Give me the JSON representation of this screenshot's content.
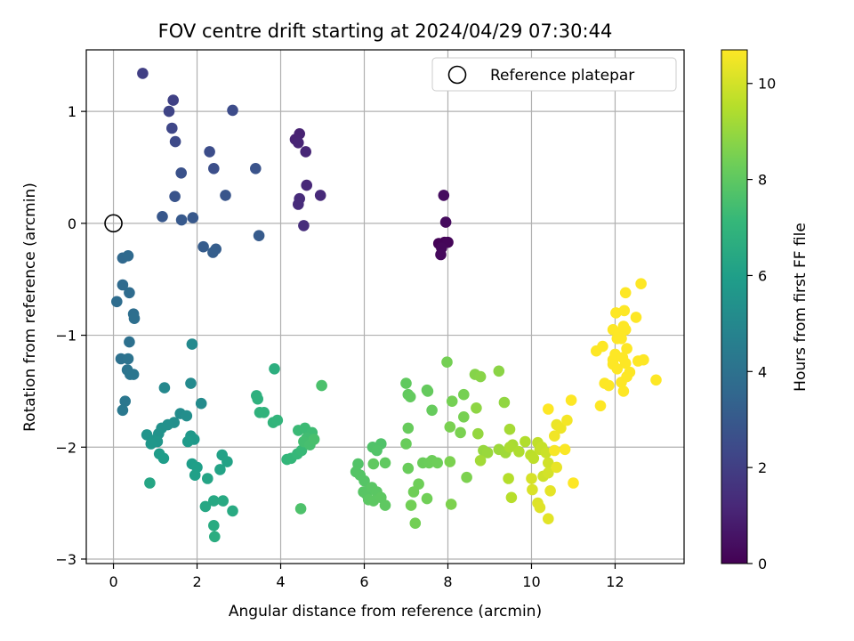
{
  "chart_data": {
    "type": "scatter",
    "title": "FOV centre drift starting at 2024/04/29 07:30:44",
    "xlabel": "Angular distance from reference (arcmin)",
    "ylabel": "Rotation from reference (arcmin)",
    "xlim": [
      -0.65,
      13.65
    ],
    "ylim": [
      -3.04,
      1.55
    ],
    "xticks": [
      0,
      2,
      4,
      6,
      8,
      10,
      12
    ],
    "yticks": [
      -3,
      -2,
      -1,
      0,
      1
    ],
    "grid": true,
    "legend": {
      "position": "top-right",
      "entries": [
        "Reference platepar"
      ]
    },
    "reference_point": {
      "x": 0,
      "y": 0
    },
    "colorbar": {
      "label": "Hours from first FF file",
      "min": 0,
      "max": 10.7,
      "ticks": [
        0,
        2,
        4,
        6,
        8,
        10
      ],
      "colormap": [
        "#440154",
        "#482878",
        "#3e4989",
        "#31688e",
        "#26828e",
        "#1f9e89",
        "#35b779",
        "#6ece58",
        "#b5de2b",
        "#fde725"
      ]
    },
    "points": [
      [
        7.78,
        -0.18,
        0.05
      ],
      [
        7.92,
        -0.17,
        0.1
      ],
      [
        8.0,
        -0.17,
        0.15
      ],
      [
        7.85,
        -0.22,
        0.2
      ],
      [
        7.83,
        -0.28,
        0.25
      ],
      [
        7.95,
        0.01,
        0.3
      ],
      [
        7.9,
        0.25,
        0.35
      ],
      [
        4.45,
        0.8,
        1.0
      ],
      [
        4.35,
        0.75,
        1.05
      ],
      [
        4.42,
        0.72,
        1.1
      ],
      [
        4.6,
        0.64,
        1.15
      ],
      [
        4.62,
        0.34,
        1.2
      ],
      [
        4.95,
        0.25,
        1.25
      ],
      [
        4.45,
        0.22,
        1.3
      ],
      [
        4.42,
        0.17,
        1.35
      ],
      [
        4.55,
        -0.02,
        1.4
      ],
      [
        0.7,
        1.34,
        2.0
      ],
      [
        1.43,
        1.1,
        2.1
      ],
      [
        1.33,
        1.0,
        2.2
      ],
      [
        1.4,
        0.85,
        2.3
      ],
      [
        1.48,
        0.73,
        2.4
      ],
      [
        2.85,
        1.01,
        2.5
      ],
      [
        2.3,
        0.64,
        2.55
      ],
      [
        2.4,
        0.49,
        2.6
      ],
      [
        1.62,
        0.45,
        2.7
      ],
      [
        3.4,
        0.49,
        2.75
      ],
      [
        1.47,
        0.24,
        2.8
      ],
      [
        2.68,
        0.25,
        2.85
      ],
      [
        1.17,
        0.06,
        2.9
      ],
      [
        1.9,
        0.05,
        2.95
      ],
      [
        1.63,
        0.03,
        3.0
      ],
      [
        3.48,
        -0.11,
        3.05
      ],
      [
        2.15,
        -0.21,
        3.1
      ],
      [
        2.45,
        -0.23,
        3.15
      ],
      [
        2.38,
        -0.26,
        3.2
      ],
      [
        0.22,
        -0.31,
        3.6
      ],
      [
        0.35,
        -0.29,
        3.65
      ],
      [
        0.22,
        -0.55,
        3.7
      ],
      [
        0.38,
        -0.62,
        3.75
      ],
      [
        0.08,
        -0.7,
        3.8
      ],
      [
        0.48,
        -0.81,
        3.85
      ],
      [
        0.5,
        -0.85,
        3.9
      ],
      [
        0.38,
        -1.06,
        3.95
      ],
      [
        0.18,
        -1.21,
        4.0
      ],
      [
        0.35,
        -1.21,
        4.05
      ],
      [
        0.33,
        -1.31,
        4.1
      ],
      [
        0.4,
        -1.35,
        4.15
      ],
      [
        0.48,
        -1.35,
        4.2
      ],
      [
        0.28,
        -1.59,
        4.25
      ],
      [
        0.22,
        -1.67,
        4.3
      ],
      [
        1.22,
        -1.47,
        5.0
      ],
      [
        1.88,
        -1.08,
        5.05
      ],
      [
        1.85,
        -1.43,
        5.1
      ],
      [
        2.1,
        -1.61,
        5.15
      ],
      [
        1.6,
        -1.7,
        5.2
      ],
      [
        1.75,
        -1.72,
        5.25
      ],
      [
        1.45,
        -1.78,
        5.3
      ],
      [
        1.3,
        -1.8,
        5.35
      ],
      [
        1.15,
        -1.83,
        5.4
      ],
      [
        1.08,
        -1.88,
        5.45
      ],
      [
        0.8,
        -1.89,
        5.5
      ],
      [
        0.95,
        -1.94,
        5.55
      ],
      [
        1.05,
        -1.95,
        5.6
      ],
      [
        0.9,
        -1.97,
        5.65
      ],
      [
        1.85,
        -1.9,
        5.7
      ],
      [
        1.93,
        -1.93,
        5.75
      ],
      [
        1.78,
        -1.95,
        5.8
      ],
      [
        1.1,
        -2.06,
        5.85
      ],
      [
        1.2,
        -2.1,
        5.9
      ],
      [
        1.88,
        -2.15,
        5.95
      ],
      [
        2.0,
        -2.18,
        6.0
      ],
      [
        1.95,
        -2.25,
        6.05
      ],
      [
        2.6,
        -2.07,
        6.1
      ],
      [
        2.72,
        -2.13,
        6.15
      ],
      [
        2.55,
        -2.2,
        6.2
      ],
      [
        2.25,
        -2.28,
        6.25
      ],
      [
        0.87,
        -2.32,
        6.3
      ],
      [
        2.2,
        -2.53,
        6.35
      ],
      [
        2.4,
        -2.48,
        6.4
      ],
      [
        2.62,
        -2.48,
        6.45
      ],
      [
        2.85,
        -2.57,
        6.5
      ],
      [
        2.4,
        -2.7,
        6.55
      ],
      [
        2.42,
        -2.8,
        6.6
      ],
      [
        3.85,
        -1.3,
        6.7
      ],
      [
        3.42,
        -1.54,
        6.75
      ],
      [
        3.45,
        -1.57,
        6.8
      ],
      [
        3.5,
        -1.69,
        6.85
      ],
      [
        3.6,
        -1.69,
        6.9
      ],
      [
        3.82,
        -1.78,
        6.95
      ],
      [
        3.92,
        -1.76,
        7.0
      ],
      [
        4.15,
        -2.11,
        7.05
      ],
      [
        4.25,
        -2.1,
        7.1
      ],
      [
        4.4,
        -2.06,
        7.15
      ],
      [
        4.5,
        -2.03,
        7.2
      ],
      [
        4.42,
        -1.85,
        7.25
      ],
      [
        4.58,
        -1.83,
        7.3
      ],
      [
        4.75,
        -1.87,
        7.35
      ],
      [
        4.62,
        -1.92,
        7.4
      ],
      [
        4.55,
        -1.95,
        7.45
      ],
      [
        4.7,
        -1.98,
        7.5
      ],
      [
        4.8,
        -1.93,
        7.55
      ],
      [
        4.98,
        -1.45,
        7.6
      ],
      [
        4.48,
        -2.55,
        7.65
      ],
      [
        6.4,
        -1.97,
        7.7
      ],
      [
        6.2,
        -2.0,
        7.72
      ],
      [
        6.3,
        -2.03,
        7.74
      ],
      [
        5.85,
        -2.15,
        7.76
      ],
      [
        5.8,
        -2.22,
        7.78
      ],
      [
        5.9,
        -2.25,
        7.8
      ],
      [
        6.0,
        -2.3,
        7.82
      ],
      [
        6.12,
        -2.38,
        7.84
      ],
      [
        5.98,
        -2.4,
        7.86
      ],
      [
        6.05,
        -2.42,
        7.88
      ],
      [
        6.18,
        -2.36,
        7.9
      ],
      [
        6.3,
        -2.4,
        7.92
      ],
      [
        6.1,
        -2.47,
        7.94
      ],
      [
        6.22,
        -2.48,
        7.96
      ],
      [
        6.4,
        -2.45,
        7.98
      ],
      [
        6.5,
        -2.52,
        8.0
      ],
      [
        6.22,
        -2.15,
        8.02
      ],
      [
        6.5,
        -2.14,
        8.04
      ],
      [
        7.0,
        -1.43,
        8.06
      ],
      [
        7.05,
        -1.53,
        8.08
      ],
      [
        7.1,
        -1.55,
        8.1
      ],
      [
        7.5,
        -1.49,
        8.12
      ],
      [
        7.52,
        -1.5,
        8.14
      ],
      [
        7.62,
        -1.67,
        8.16
      ],
      [
        7.05,
        -1.83,
        8.18
      ],
      [
        7.0,
        -1.97,
        8.2
      ],
      [
        7.05,
        -2.19,
        8.22
      ],
      [
        7.4,
        -2.14,
        8.24
      ],
      [
        7.55,
        -2.14,
        8.26
      ],
      [
        7.62,
        -2.12,
        8.28
      ],
      [
        7.75,
        -2.14,
        8.3
      ],
      [
        7.3,
        -2.33,
        8.32
      ],
      [
        7.18,
        -2.4,
        8.34
      ],
      [
        7.5,
        -2.46,
        8.36
      ],
      [
        7.12,
        -2.52,
        8.38
      ],
      [
        7.22,
        -2.68,
        8.4
      ],
      [
        7.98,
        -1.24,
        8.42
      ],
      [
        8.1,
        -1.59,
        8.44
      ],
      [
        8.38,
        -1.53,
        8.46
      ],
      [
        8.38,
        -1.73,
        8.48
      ],
      [
        8.05,
        -1.82,
        8.5
      ],
      [
        8.3,
        -1.87,
        8.52
      ],
      [
        8.05,
        -2.13,
        8.54
      ],
      [
        8.45,
        -2.27,
        8.56
      ],
      [
        8.08,
        -2.51,
        8.58
      ],
      [
        8.65,
        -1.35,
        8.7
      ],
      [
        8.78,
        -1.37,
        8.75
      ],
      [
        9.22,
        -1.32,
        8.8
      ],
      [
        8.68,
        -1.65,
        8.85
      ],
      [
        9.35,
        -1.6,
        8.9
      ],
      [
        8.72,
        -1.88,
        8.95
      ],
      [
        8.85,
        -2.03,
        9.0
      ],
      [
        8.95,
        -2.05,
        9.05
      ],
      [
        9.22,
        -2.02,
        9.1
      ],
      [
        9.38,
        -2.05,
        9.15
      ],
      [
        8.78,
        -2.12,
        9.2
      ],
      [
        9.48,
        -1.84,
        9.25
      ],
      [
        9.55,
        -1.98,
        9.3
      ],
      [
        9.48,
        -2.0,
        9.35
      ],
      [
        9.7,
        -2.04,
        9.4
      ],
      [
        9.85,
        -1.95,
        9.45
      ],
      [
        9.45,
        -2.28,
        9.5
      ],
      [
        9.52,
        -2.45,
        9.55
      ],
      [
        9.98,
        -2.07,
        9.6
      ],
      [
        10.05,
        -2.1,
        9.65
      ],
      [
        10.15,
        -1.96,
        9.7
      ],
      [
        10.2,
        -2.02,
        9.75
      ],
      [
        10.25,
        -2.0,
        9.8
      ],
      [
        10.35,
        -2.05,
        9.85
      ],
      [
        10.28,
        -2.26,
        9.9
      ],
      [
        10.4,
        -2.14,
        9.95
      ],
      [
        10.4,
        -2.23,
        10.0
      ],
      [
        10.0,
        -2.28,
        10.05
      ],
      [
        10.02,
        -2.38,
        10.1
      ],
      [
        10.15,
        -2.5,
        10.15
      ],
      [
        10.2,
        -2.54,
        10.2
      ],
      [
        10.4,
        -2.64,
        10.25
      ],
      [
        10.45,
        -2.39,
        10.3
      ],
      [
        10.6,
        -2.18,
        10.35
      ],
      [
        10.6,
        -1.8,
        10.4
      ],
      [
        10.7,
        -1.83,
        10.45
      ],
      [
        10.55,
        -1.9,
        10.5
      ],
      [
        10.85,
        -1.76,
        10.55
      ],
      [
        10.55,
        -2.03,
        10.6
      ],
      [
        10.8,
        -2.02,
        10.65
      ],
      [
        10.4,
        -1.66,
        10.7
      ],
      [
        10.95,
        -1.58,
        10.7
      ],
      [
        11.0,
        -2.32,
        10.7
      ]
    ],
    "points_late": [
      [
        11.55,
        -1.14,
        10.7
      ],
      [
        11.7,
        -1.1,
        10.7
      ],
      [
        11.65,
        -1.63,
        10.7
      ],
      [
        11.75,
        -1.43,
        10.7
      ],
      [
        11.85,
        -1.45,
        10.7
      ],
      [
        11.95,
        -1.22,
        10.7
      ],
      [
        11.95,
        -1.26,
        10.7
      ],
      [
        12.0,
        -1.17,
        10.7
      ],
      [
        12.05,
        -1.03,
        10.7
      ],
      [
        11.95,
        -0.95,
        10.7
      ],
      [
        12.02,
        -0.8,
        10.7
      ],
      [
        12.1,
        -0.98,
        10.7
      ],
      [
        12.15,
        -1.42,
        10.7
      ],
      [
        12.2,
        -1.5,
        10.7
      ],
      [
        12.25,
        -0.95,
        10.7
      ],
      [
        12.2,
        -0.92,
        10.7
      ],
      [
        12.15,
        -1.03,
        10.7
      ],
      [
        12.28,
        -1.12,
        10.7
      ],
      [
        12.22,
        -0.78,
        10.7
      ],
      [
        12.25,
        -0.62,
        10.7
      ],
      [
        12.18,
        -1.2,
        10.7
      ],
      [
        12.25,
        -1.25,
        10.7
      ],
      [
        12.35,
        -1.33,
        10.7
      ],
      [
        12.55,
        -1.23,
        10.7
      ],
      [
        12.68,
        -1.22,
        10.7
      ],
      [
        12.62,
        -0.54,
        10.7
      ],
      [
        12.5,
        -0.84,
        10.7
      ],
      [
        12.28,
        -1.37,
        10.7
      ],
      [
        12.05,
        -1.3,
        10.7
      ],
      [
        12.98,
        -1.4,
        10.7
      ]
    ]
  }
}
